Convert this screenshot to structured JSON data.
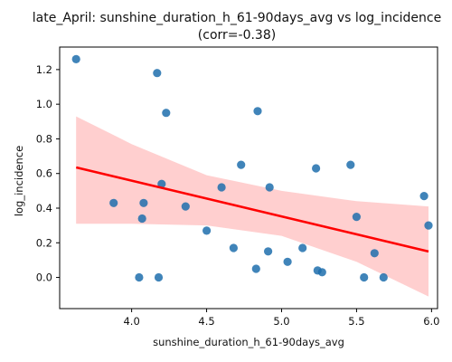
{
  "chart_data": {
    "type": "scatter",
    "title_line1": "late_April: sunshine_duration_h_61-90days_avg vs log_incidence",
    "title_line2": "(corr=-0.38)",
    "xlabel": "sunshine_duration_h_61-90days_avg",
    "ylabel": "log_incidence",
    "xlim": [
      3.52,
      6.04
    ],
    "ylim": [
      -0.18,
      1.33
    ],
    "xticks": [
      4.0,
      4.5,
      5.0,
      5.5,
      6.0
    ],
    "xtick_labels": [
      "4.0",
      "4.5",
      "5.0",
      "5.5",
      "6.0"
    ],
    "yticks": [
      0.0,
      0.2,
      0.4,
      0.6,
      0.8,
      1.0,
      1.2
    ],
    "ytick_labels": [
      "0.0",
      "0.2",
      "0.4",
      "0.6",
      "0.8",
      "1.0",
      "1.2"
    ],
    "points": [
      {
        "x": 3.63,
        "y": 1.26
      },
      {
        "x": 4.17,
        "y": 1.18
      },
      {
        "x": 4.23,
        "y": 0.95
      },
      {
        "x": 4.84,
        "y": 0.96
      },
      {
        "x": 4.73,
        "y": 0.65
      },
      {
        "x": 5.23,
        "y": 0.63
      },
      {
        "x": 5.46,
        "y": 0.65
      },
      {
        "x": 4.2,
        "y": 0.54
      },
      {
        "x": 4.6,
        "y": 0.52
      },
      {
        "x": 4.92,
        "y": 0.52
      },
      {
        "x": 3.88,
        "y": 0.43
      },
      {
        "x": 4.08,
        "y": 0.43
      },
      {
        "x": 4.36,
        "y": 0.41
      },
      {
        "x": 4.07,
        "y": 0.34
      },
      {
        "x": 5.5,
        "y": 0.35
      },
      {
        "x": 5.95,
        "y": 0.47
      },
      {
        "x": 5.98,
        "y": 0.3
      },
      {
        "x": 4.5,
        "y": 0.27
      },
      {
        "x": 4.68,
        "y": 0.17
      },
      {
        "x": 5.14,
        "y": 0.17
      },
      {
        "x": 4.91,
        "y": 0.15
      },
      {
        "x": 5.62,
        "y": 0.14
      },
      {
        "x": 5.04,
        "y": 0.09
      },
      {
        "x": 4.83,
        "y": 0.05
      },
      {
        "x": 5.24,
        "y": 0.04
      },
      {
        "x": 5.27,
        "y": 0.03
      },
      {
        "x": 4.05,
        "y": 0.0
      },
      {
        "x": 4.18,
        "y": 0.0
      },
      {
        "x": 5.55,
        "y": 0.0
      },
      {
        "x": 5.68,
        "y": 0.0
      }
    ],
    "regression": {
      "x": [
        3.63,
        5.98
      ],
      "y": [
        0.635,
        0.15
      ]
    },
    "confidence_band": {
      "x": [
        3.63,
        4.0,
        4.5,
        5.0,
        5.5,
        5.98
      ],
      "upper": [
        0.93,
        0.77,
        0.59,
        0.5,
        0.44,
        0.41
      ],
      "lower": [
        0.31,
        0.31,
        0.3,
        0.24,
        0.09,
        -0.11
      ]
    },
    "grid": false,
    "colors": {
      "points": "#1f6fad",
      "regression_line": "#ff0000",
      "band": "#ffcccc",
      "axes": "#000000"
    }
  }
}
